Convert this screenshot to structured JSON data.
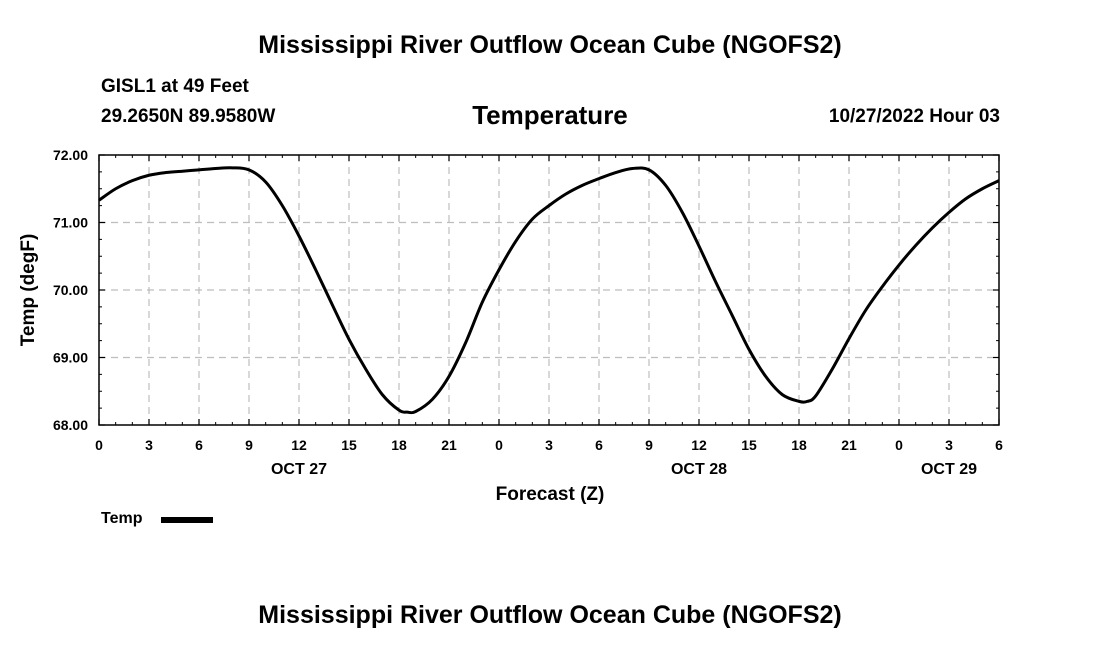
{
  "header": {
    "main_title": "Mississippi River Outflow Ocean Cube (NGOFS2)",
    "station": "GISL1 at 49 Feet",
    "coords": "29.2650N  89.9580W",
    "datetime": "10/27/2022 Hour 03"
  },
  "footer": {
    "repeat_title": "Mississippi River Outflow Ocean Cube (NGOFS2)"
  },
  "chart_data": {
    "type": "line",
    "title": "Temperature",
    "xlabel": "Forecast (Z)",
    "ylabel": "Temp (degF)",
    "xlim": [
      0,
      54
    ],
    "ylim": [
      68.0,
      72.0
    ],
    "grid": true,
    "y_ticks": [
      68.0,
      69.0,
      70.0,
      71.0,
      72.0
    ],
    "y_tick_labels": [
      "68.00",
      "69.00",
      "70.00",
      "71.00",
      "72.00"
    ],
    "x_ticks": [
      0,
      3,
      6,
      9,
      12,
      15,
      18,
      21,
      24,
      27,
      30,
      33,
      36,
      39,
      42,
      45,
      48,
      51,
      54
    ],
    "x_tick_labels": [
      "0",
      "3",
      "6",
      "9",
      "12",
      "15",
      "18",
      "21",
      "0",
      "3",
      "6",
      "9",
      "12",
      "15",
      "18",
      "21",
      "0",
      "3",
      "6"
    ],
    "day_labels": [
      {
        "x": 12,
        "label": "OCT 27"
      },
      {
        "x": 36,
        "label": "OCT 28"
      },
      {
        "x": 51,
        "label": "OCT 29"
      }
    ],
    "series": [
      {
        "name": "Temp",
        "color": "#000000",
        "x": [
          0,
          1,
          2,
          3,
          4,
          5,
          6,
          7,
          8,
          9,
          10,
          11,
          12,
          13,
          14,
          15,
          16,
          17,
          18,
          18.5,
          19,
          20,
          21,
          22,
          23,
          24,
          25,
          26,
          27,
          28,
          29,
          30,
          31,
          32,
          33,
          34,
          35,
          36,
          37,
          38,
          39,
          40,
          41,
          42,
          42.5,
          43,
          44,
          45,
          46,
          47,
          48,
          49,
          50,
          51,
          52,
          53,
          54
        ],
        "values": [
          71.33,
          71.5,
          71.62,
          71.7,
          71.74,
          71.76,
          71.78,
          71.8,
          71.81,
          71.78,
          71.6,
          71.25,
          70.8,
          70.3,
          69.78,
          69.27,
          68.83,
          68.45,
          68.22,
          68.19,
          68.2,
          68.38,
          68.72,
          69.22,
          69.82,
          70.3,
          70.72,
          71.05,
          71.25,
          71.42,
          71.55,
          71.65,
          71.74,
          71.8,
          71.78,
          71.55,
          71.15,
          70.65,
          70.12,
          69.62,
          69.12,
          68.72,
          68.45,
          68.35,
          68.35,
          68.43,
          68.83,
          69.28,
          69.7,
          70.05,
          70.37,
          70.66,
          70.92,
          71.15,
          71.35,
          71.5,
          71.62
        ]
      }
    ],
    "legend": {
      "label": "Temp",
      "placement": "bottom-left"
    }
  }
}
